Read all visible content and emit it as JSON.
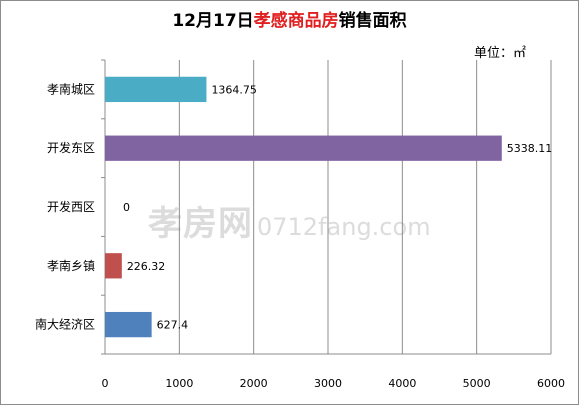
{
  "chart_data": {
    "type": "bar",
    "orientation": "horizontal",
    "title_prefix": "12月17日",
    "title_highlight": "孝感商品房",
    "title_suffix": "销售面积",
    "unit_label": "单位：㎡",
    "watermark": "孝房网",
    "watermark_url": "0712fang.com",
    "categories": [
      "孝南城区",
      "开发东区",
      "开发西区",
      "孝南乡镇",
      "南大经济区"
    ],
    "values": [
      1364.75,
      5338.11,
      0,
      226.32,
      627.4
    ],
    "value_labels": [
      "1364.75",
      "5338.11",
      "0",
      "226.32",
      "627.4"
    ],
    "colors": [
      "#4bacc6",
      "#8064a2",
      "#9bbb59",
      "#c0504d",
      "#4f81bd"
    ],
    "xlim": [
      0,
      6000
    ],
    "xticks": [
      0,
      1000,
      2000,
      3000,
      4000,
      5000,
      6000
    ],
    "grid": true,
    "legend": "none"
  }
}
